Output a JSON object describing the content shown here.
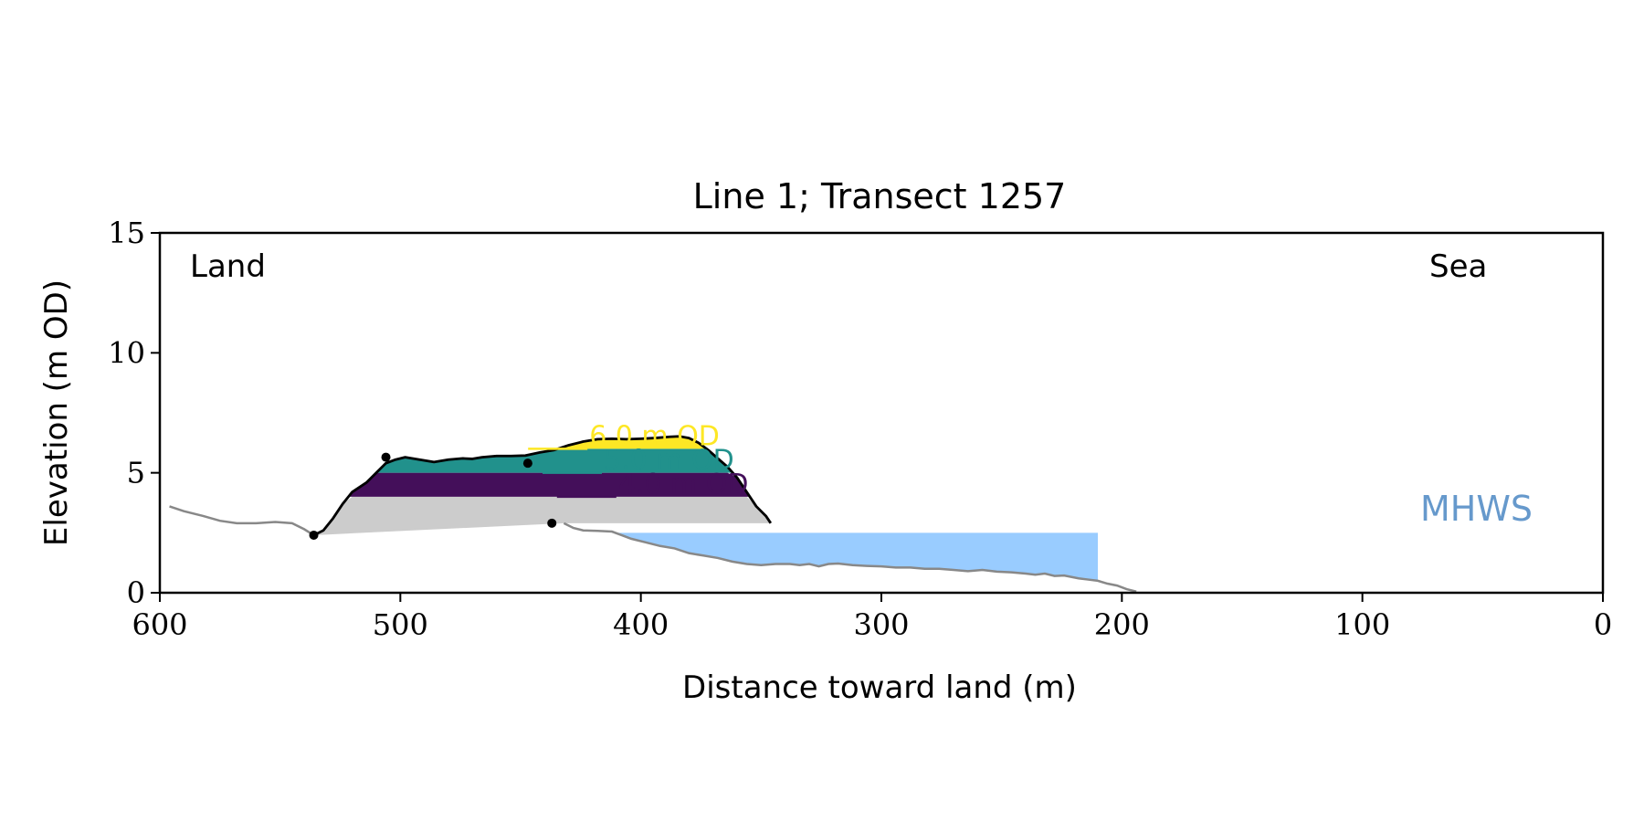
{
  "chart_data": {
    "type": "area",
    "title": "Line 1; Transect 1257",
    "xlabel": "Distance toward land (m)",
    "ylabel": "Elevation (m OD)",
    "xlim": [
      600,
      0
    ],
    "ylim": [
      0,
      15
    ],
    "x_ticks": [
      600,
      500,
      400,
      300,
      200,
      100,
      0
    ],
    "y_ticks": [
      0,
      5,
      10,
      15
    ],
    "grid": false,
    "annotations": {
      "land": "Land",
      "sea": "Sea",
      "mhws": "MHWS"
    },
    "mhws_level": 2.5,
    "mhws_extent": [
      412,
      210
    ],
    "colors": {
      "profile": "#888888",
      "dune": "#000000",
      "base_fill": "#cccccc",
      "water": "#99ccff",
      "mhws_text": "#6699cc",
      "band_4": "#440f5a",
      "band_5": "#21918c",
      "band_6": "#fde725"
    },
    "bands": [
      {
        "label": "4.0 m OD",
        "level": 4.0,
        "color": "#440f5a",
        "label_x": 414,
        "label_y": 4.0
      },
      {
        "label": "5.0 m OD",
        "level": 5.0,
        "color": "#21918c",
        "label_x": 420,
        "label_y": 5.0
      },
      {
        "label": "6.0 m OD",
        "level": 6.0,
        "color": "#fde725",
        "label_x": 426,
        "label_y": 6.0
      }
    ],
    "profile": [
      [
        596,
        3.6
      ],
      [
        590,
        3.4
      ],
      [
        582,
        3.2
      ],
      [
        575,
        3.0
      ],
      [
        568,
        2.9
      ],
      [
        560,
        2.9
      ],
      [
        552,
        2.95
      ],
      [
        545,
        2.9
      ],
      [
        540,
        2.65
      ],
      [
        536,
        2.4
      ],
      [
        432,
        2.9
      ],
      [
        428,
        2.7
      ],
      [
        424,
        2.6
      ],
      [
        418,
        2.58
      ],
      [
        412,
        2.55
      ],
      [
        408,
        2.4
      ],
      [
        404,
        2.25
      ],
      [
        398,
        2.1
      ],
      [
        392,
        1.95
      ],
      [
        386,
        1.85
      ],
      [
        380,
        1.65
      ],
      [
        374,
        1.55
      ],
      [
        368,
        1.45
      ],
      [
        362,
        1.3
      ],
      [
        356,
        1.2
      ],
      [
        350,
        1.15
      ],
      [
        344,
        1.2
      ],
      [
        338,
        1.2
      ],
      [
        334,
        1.15
      ],
      [
        330,
        1.2
      ],
      [
        326,
        1.1
      ],
      [
        322,
        1.2
      ],
      [
        318,
        1.22
      ],
      [
        312,
        1.15
      ],
      [
        306,
        1.12
      ],
      [
        300,
        1.1
      ],
      [
        294,
        1.05
      ],
      [
        288,
        1.05
      ],
      [
        282,
        1.0
      ],
      [
        276,
        1.0
      ],
      [
        270,
        0.95
      ],
      [
        264,
        0.9
      ],
      [
        258,
        0.95
      ],
      [
        252,
        0.88
      ],
      [
        246,
        0.85
      ],
      [
        240,
        0.8
      ],
      [
        236,
        0.75
      ],
      [
        232,
        0.8
      ],
      [
        228,
        0.7
      ],
      [
        224,
        0.72
      ],
      [
        218,
        0.6
      ],
      [
        214,
        0.55
      ],
      [
        210,
        0.5
      ],
      [
        206,
        0.38
      ],
      [
        202,
        0.3
      ],
      [
        198,
        0.15
      ],
      [
        194,
        0.05
      ]
    ],
    "dune_profile": [
      [
        536,
        2.4
      ],
      [
        532,
        2.6
      ],
      [
        528,
        3.1
      ],
      [
        524,
        3.7
      ],
      [
        520,
        4.2
      ],
      [
        514,
        4.6
      ],
      [
        510,
        5.0
      ],
      [
        506,
        5.4
      ],
      [
        502,
        5.55
      ],
      [
        498,
        5.65
      ],
      [
        492,
        5.55
      ],
      [
        486,
        5.45
      ],
      [
        480,
        5.55
      ],
      [
        474,
        5.6
      ],
      [
        470,
        5.58
      ],
      [
        466,
        5.65
      ],
      [
        460,
        5.7
      ],
      [
        454,
        5.7
      ],
      [
        448,
        5.72
      ],
      [
        442,
        5.85
      ],
      [
        436,
        5.95
      ],
      [
        430,
        6.15
      ],
      [
        424,
        6.3
      ],
      [
        418,
        6.4
      ],
      [
        412,
        6.42
      ],
      [
        406,
        6.4
      ],
      [
        400,
        6.42
      ],
      [
        394,
        6.45
      ],
      [
        388,
        6.5
      ],
      [
        384,
        6.52
      ],
      [
        380,
        6.45
      ],
      [
        376,
        6.25
      ],
      [
        372,
        5.95
      ],
      [
        368,
        5.6
      ],
      [
        364,
        5.25
      ],
      [
        360,
        4.8
      ],
      [
        356,
        4.2
      ],
      [
        352,
        3.6
      ],
      [
        348,
        3.2
      ],
      [
        346,
        2.9
      ],
      [
        432,
        2.9
      ]
    ],
    "markers": [
      [
        536,
        2.4
      ],
      [
        506,
        5.65
      ],
      [
        447,
        5.4
      ],
      [
        437,
        2.9
      ]
    ]
  }
}
